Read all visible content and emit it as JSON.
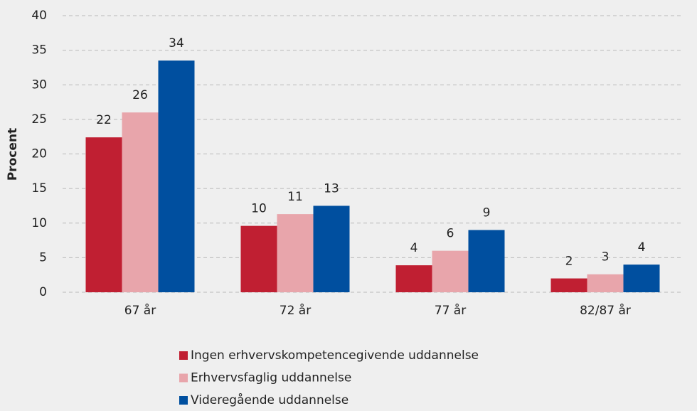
{
  "chart_data": {
    "type": "bar",
    "y_label": "Procent",
    "categories": [
      "67 år",
      "72 år",
      "77 år",
      "82/87 år"
    ],
    "series": [
      {
        "name": "Ingen erhvervskompetencegivende uddannelse",
        "color": "#c01f32",
        "values": [
          22.4,
          9.6,
          3.9,
          2
        ],
        "value_labels": [
          "22",
          "10",
          "4",
          "2"
        ]
      },
      {
        "name": "Erhvervsfaglig uddannelse",
        "color": "#e8a5ab",
        "values": [
          26,
          11.3,
          6,
          2.6
        ],
        "value_labels": [
          "26",
          "11",
          "6",
          "3"
        ]
      },
      {
        "name": "Videregående uddannelse",
        "color": "#004f9f",
        "values": [
          33.5,
          12.5,
          9,
          4
        ],
        "value_labels": [
          "34",
          "13",
          "9",
          "4"
        ]
      }
    ],
    "ylim": [
      0,
      40
    ],
    "yticks": [
      0,
      5,
      10,
      15,
      20,
      25,
      30,
      35,
      40
    ],
    "grid": true,
    "legend": "bottom"
  }
}
